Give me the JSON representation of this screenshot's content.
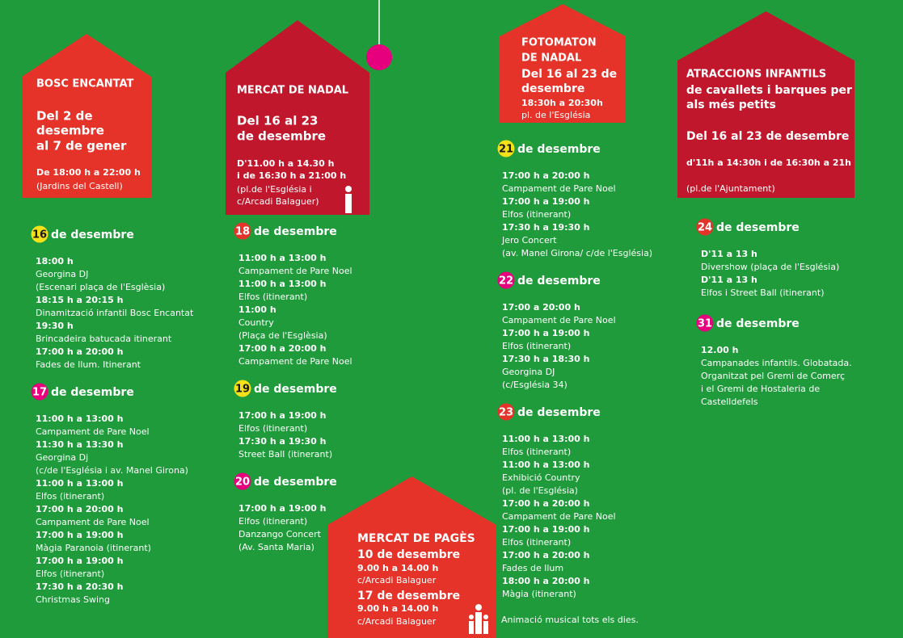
{
  "ornament_color": "#e6007e",
  "houses": [
    {
      "lines": [
        "BOSC ENCANTAT",
        "Del  2 de",
        "desembre",
        "al 7 de gener",
        "De 18:00 h a 22:00 h",
        "(Jardins del Castell)"
      ]
    },
    {
      "lines": [
        "MERCAT DE NADAL",
        "Del 16 al 23",
        "de desembre",
        "D'11.00 h a 14.30 h",
        "i de 16:30 h a 21:00 h",
        "(pl.de l'Església i",
        "c/Arcadi Balaguer)"
      ]
    },
    {
      "lines": [
        "FOTOMATON",
        "DE NADAL",
        "Del 16 al 23 de",
        "desembre",
        "18:30h a 20:30h",
        "pl. de l'Església"
      ]
    },
    {
      "lines": [
        "ATRACCIONS INFANTILS",
        "de cavallets i barques per",
        "als més petits",
        "Del 16 al 23 de desembre",
        "d'11h a 14:30h  i de 16:30h a 21h",
        "(pl.de l'Ajuntament)"
      ]
    },
    {
      "lines": [
        "MERCAT DE PAGÈS",
        "10 de desembre",
        "9.00 h a 14.00 h",
        "c/Arcadi Balaguer",
        "17 de desembre",
        "9.00 h a 14.00 h",
        "c/Arcadi Balaguer"
      ]
    }
  ],
  "days": [
    {
      "day": "16",
      "label": "de desembre",
      "color": "#f5e11a",
      "events": [
        {
          "time": "18:00 h",
          "lines": [
            "Georgina DJ",
            "(Escenari plaça de l'Esglèsia)"
          ]
        },
        {
          "time": "18:15 h a 20:15 h",
          "lines": [
            "Dinamització infantil Bosc Encantat"
          ]
        },
        {
          "time": "19:30 h",
          "lines": [
            "Brincadeira batucada itinerant"
          ]
        },
        {
          "time": "17:00 h a 20:00 h",
          "lines": [
            "Fades de llum. Itinerant"
          ]
        }
      ]
    },
    {
      "day": "17",
      "label": "de desembre",
      "color": "#e6007e",
      "events": [
        {
          "time": "11:00 h a 13:00 h",
          "lines": [
            "Campament de Pare Noel"
          ]
        },
        {
          "time": "11:30 h a 13:30 h",
          "lines": [
            "Georgina Dj",
            "(c/de l'Església i av. Manel Girona)"
          ]
        },
        {
          "time": "11:00 h a 13:00 h",
          "lines": [
            "Elfos (itinerant)"
          ]
        },
        {
          "time": "17:00 h a 20:00 h",
          "lines": [
            "Campament de Pare Noel"
          ]
        },
        {
          "time": "17:00 h a 19:00 h",
          "lines": [
            "Màgia Paranoia (itinerant)"
          ]
        },
        {
          "time": "17:00 h a 19:00 h",
          "lines": [
            "Elfos (itinerant)"
          ]
        },
        {
          "time": "17:30 h a 20:30 h",
          "lines": [
            "Christmas Swing"
          ]
        }
      ]
    },
    {
      "day": "18",
      "label": "de desembre",
      "color": "#e5332a",
      "events": [
        {
          "time": "11:00 h a 13:00 h",
          "lines": [
            "Campament de Pare Noel"
          ]
        },
        {
          "time": "11:00 h a 13:00 h",
          "lines": [
            "Elfos (itinerant)"
          ]
        },
        {
          "time": "11:00 h",
          "lines": [
            "Country",
            "(Plaça de l'Esglèsia)"
          ]
        },
        {
          "time": "17:00 h a 20:00 h",
          "lines": [
            "Campament de Pare Noel"
          ]
        }
      ]
    },
    {
      "day": "19",
      "label": "de desembre",
      "color": "#f5e11a",
      "events": [
        {
          "time": "17:00 h a 19:00 h",
          "lines": [
            "Elfos (itinerant)"
          ]
        },
        {
          "time": "17:30 h a 19:30 h",
          "lines": [
            "Street Ball (itinerant)"
          ]
        }
      ]
    },
    {
      "day": "20",
      "label": "de desembre",
      "color": "#e6007e",
      "events": [
        {
          "time": "17:00 h a 19:00 h",
          "lines": [
            "Elfos (itinerant)",
            "Danzango Concert",
            "(Av. Santa Maria)"
          ]
        }
      ]
    },
    {
      "day": "21",
      "label": "de desembre",
      "color": "#f5e11a",
      "events": [
        {
          "time": "17:00 h a 20:00 h",
          "lines": [
            "Campament de Pare Noel"
          ]
        },
        {
          "time": "17:00 h a 19:00 h",
          "lines": [
            "Elfos (itinerant)"
          ]
        },
        {
          "time": "17:30 h a 19:30 h",
          "lines": [
            "Jero Concert",
            "(av. Manel Girona/ c/de  l'Església)"
          ]
        }
      ]
    },
    {
      "day": "22",
      "label": "de desembre",
      "color": "#e6007e",
      "events": [
        {
          "time": "17:00 a 20:00 h",
          "lines": [
            "Campament de Pare Noel"
          ]
        },
        {
          "time": "17:00 h a 19:00 h",
          "lines": [
            "Elfos (itinerant)"
          ]
        },
        {
          "time": "17:30 h a 18:30  h",
          "lines": [
            "Georgina DJ",
            "(c/Església 34)"
          ]
        }
      ]
    },
    {
      "day": "23",
      "label": "de desembre",
      "color": "#e5332a",
      "events": [
        {
          "time": "11:00 h a 13:00 h",
          "lines": [
            "Elfos (itinerant)"
          ]
        },
        {
          "time": "11:00 h  a 13:00 h",
          "lines": [
            "Exhibició Country",
            "(pl. de l'Església)"
          ]
        },
        {
          "time": "17:00 h a 20:00 h",
          "lines": [
            "Campament de Pare Noel"
          ]
        },
        {
          "time": "17:00 h a 19:00 h",
          "lines": [
            "Elfos (itinerant)"
          ]
        },
        {
          "time": "17:00 h a 20:00 h",
          "lines": [
            "Fades de llum"
          ]
        },
        {
          "time": "18:00 h a 20:00 h",
          "lines": [
            "Màgia (itinerant)"
          ]
        }
      ]
    },
    {
      "day": "24",
      "label": "de desembre",
      "color": "#e5332a",
      "events": [
        {
          "time": "D'11 a 13 h",
          "lines": [
            "Divershow (plaça de l'Església)"
          ]
        },
        {
          "time": "D'11 a 13 h",
          "lines": [
            "Elfos i Street Ball (itinerant)"
          ]
        }
      ]
    },
    {
      "day": "31",
      "label": "de desembre",
      "color": "#e6007e",
      "events": [
        {
          "time": "12.00 h",
          "lines": [
            "Campanades infantils. Globatada.",
            "Organitzat pel Gremi de Comerç",
            "i el Gremi de Hostaleria de",
            "Castelldefels"
          ]
        }
      ]
    }
  ],
  "note": "Animació musical tots els dies."
}
